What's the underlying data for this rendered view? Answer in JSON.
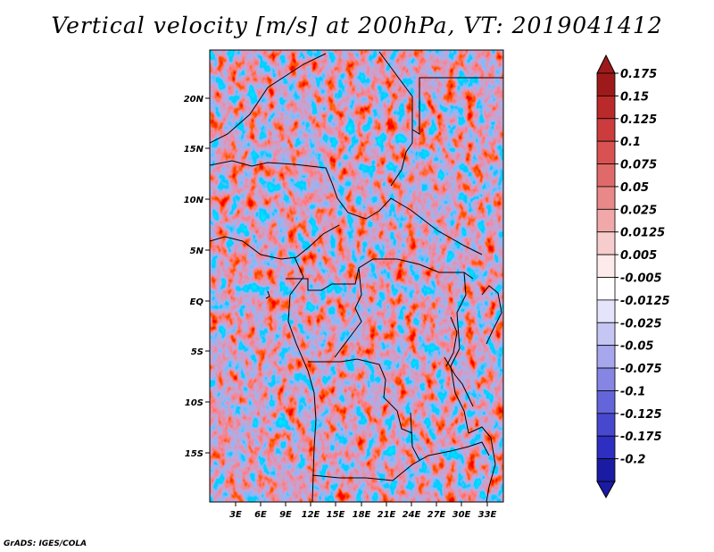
{
  "title": "Vertical velocity [m/s] at 200hPa, VT: 2019041412",
  "credit": "GrADS: IGES/COLA",
  "map": {
    "lat_labels": [
      "20N",
      "15N",
      "10N",
      "5N",
      "EQ",
      "5S",
      "10S",
      "15S"
    ],
    "lon_labels": [
      "3E",
      "6E",
      "9E",
      "12E",
      "15E",
      "18E",
      "21E",
      "24E",
      "27E",
      "30E",
      "33E"
    ]
  },
  "colorbar": {
    "labels": [
      "0.175",
      "0.15",
      "0.125",
      "0.1",
      "0.075",
      "0.05",
      "0.025",
      "0.0125",
      "0.005",
      "-0.005",
      "-0.0125",
      "-0.025",
      "-0.05",
      "-0.075",
      "-0.1",
      "-0.125",
      "-0.175",
      "-0.2"
    ],
    "colors": [
      "#9e1a1a",
      "#bb2a2a",
      "#cc3c3c",
      "#d95252",
      "#e06a6a",
      "#e88888",
      "#f0a8a8",
      "#f7cccc",
      "#fdeaea",
      "#ffffff",
      "#e4e4fb",
      "#c6c6f4",
      "#a7a7ee",
      "#8585e4",
      "#6565db",
      "#4848cf",
      "#2e2ec0",
      "#1a1aa3"
    ]
  },
  "colors": {
    "positive": "#c83c3c",
    "negative": "#4a4ad2",
    "border": "#000000"
  }
}
